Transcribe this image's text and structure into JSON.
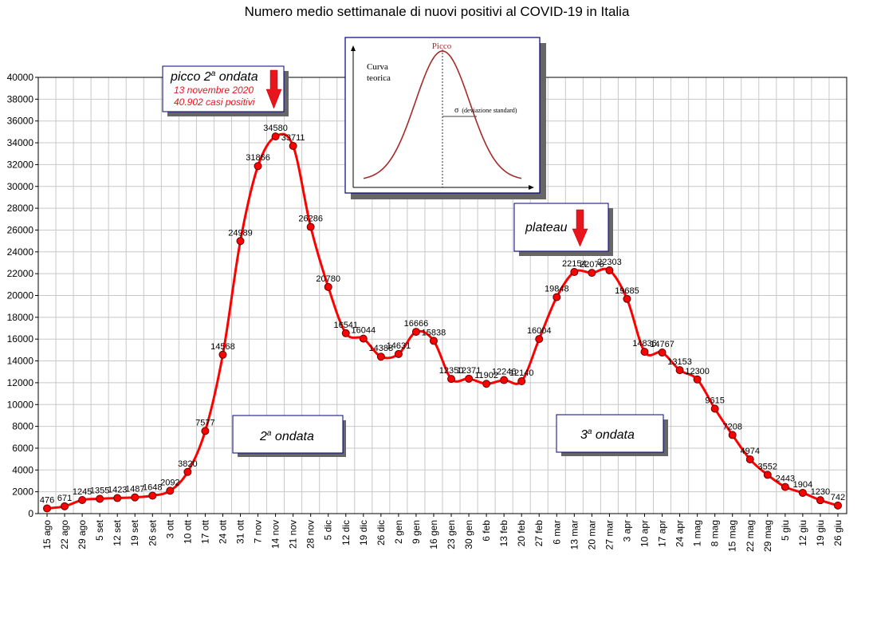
{
  "chart_data": {
    "type": "line",
    "title": "Numero medio settimanale di nuovi positivi al COVID-19 in Italia",
    "ylim": [
      0,
      40000
    ],
    "ytick_step": 2000,
    "grid": true,
    "categories": [
      "15 ago",
      "22 ago",
      "29 ago",
      "5 set",
      "12 set",
      "19 set",
      "26 set",
      "3 ott",
      "10 ott",
      "17 ott",
      "24 ott",
      "31 ott",
      "7 nov",
      "14 nov",
      "21 nov",
      "28 nov",
      "5 dic",
      "12 dic",
      "19 dic",
      "26 dic",
      "2 gen",
      "9 gen",
      "16 gen",
      "23 gen",
      "30 gen",
      "6 feb",
      "13 feb",
      "20 feb",
      "27 feb",
      "6 mar",
      "13 mar",
      "20 mar",
      "27 mar",
      "3 apr",
      "10 apr",
      "17 apr",
      "24 apr",
      "1 mag",
      "8 mag",
      "15 mag",
      "22 mag",
      "29 mag",
      "5 giu",
      "12 giu",
      "19 giu",
      "26 giu"
    ],
    "series": [
      {
        "color": "#ff0000",
        "values": [
          476,
          671,
          1245,
          1355,
          1423,
          1487,
          1648,
          2092,
          3820,
          7577,
          14568,
          24989,
          31866,
          34580,
          33711,
          26286,
          20780,
          16541,
          16044,
          14388,
          14631,
          16666,
          15838,
          12350,
          12371,
          11902,
          12246,
          12140,
          16004,
          19848,
          22154,
          22076,
          22303,
          19685,
          14836,
          14767,
          13153,
          12300,
          9615,
          7208,
          4974,
          3552,
          2443,
          1904,
          1230,
          742
        ],
        "labels": [
          "476",
          "671",
          "1245",
          "1355",
          "1423",
          "1487",
          "1648",
          "2092",
          "3820",
          "7577",
          "14568",
          "24989",
          "31866",
          "34580",
          "33711",
          "26286",
          "20780",
          "16541",
          "16044",
          "14388",
          "14631",
          "16666",
          "15838",
          "12350",
          "12371",
          "11902",
          "12246",
          "12140",
          "16004",
          "19848",
          "22154",
          "22076",
          "22303",
          "19685",
          "14836",
          "14767",
          "13153",
          "12300",
          "9615",
          "7208",
          "4974",
          "3552",
          "2443",
          "1904",
          "1230",
          "742"
        ]
      }
    ]
  },
  "annotations": {
    "peak_box": {
      "title": "picco 2",
      "title_sup": "a",
      "title_tail": " ondata",
      "date": "13 novembre 2020",
      "cases": "40.902 casi positivi",
      "text_color": "#e8141e"
    },
    "plateau_box": {
      "label": "plateau"
    },
    "wave2_box": {
      "prefix": "2",
      "sup": "a",
      "suffix": " ondata"
    },
    "wave3_box": {
      "prefix": "3",
      "sup": "a",
      "suffix": " ondata"
    },
    "theory_inset": {
      "peak_label": "Picco",
      "curve_label_1": "Curva",
      "curve_label_2": "teorica",
      "sigma_symbol": "σ",
      "sigma_label": "(deviazione standard)",
      "curve_color": "#a52a2a"
    }
  },
  "colors": {
    "grid": "#c8c8c8",
    "box_border": "#000080",
    "shadow": "#555555",
    "arrow": "#e8141e"
  }
}
